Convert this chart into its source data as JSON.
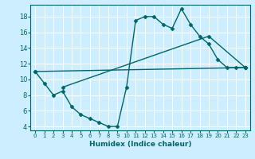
{
  "xlabel": "Humidex (Indice chaleur)",
  "bg_color": "#cceeff",
  "line_color": "#006666",
  "grid_color": "#ffffff",
  "xlim": [
    -0.5,
    23.5
  ],
  "ylim": [
    3.5,
    19.5
  ],
  "xticks": [
    0,
    1,
    2,
    3,
    4,
    5,
    6,
    7,
    8,
    9,
    10,
    11,
    12,
    13,
    14,
    15,
    16,
    17,
    18,
    19,
    20,
    21,
    22,
    23
  ],
  "yticks": [
    4,
    6,
    8,
    10,
    12,
    14,
    16,
    18
  ],
  "line1_x": [
    0,
    1,
    2,
    3,
    4,
    5,
    6,
    7,
    8,
    9,
    10,
    11,
    12,
    13,
    14,
    15,
    16,
    17,
    18,
    19,
    20,
    21,
    22,
    23
  ],
  "line1_y": [
    11,
    9.5,
    8,
    8.5,
    6.5,
    5.5,
    5,
    4.5,
    4,
    4,
    9,
    17.5,
    18,
    18,
    17,
    16.5,
    19,
    17,
    15.5,
    14.5,
    12.5,
    11.5,
    11.5,
    11.5
  ],
  "line2_x": [
    0,
    23
  ],
  "line2_y": [
    11,
    11.5
  ],
  "line3_x": [
    3,
    19,
    23
  ],
  "line3_y": [
    9,
    15.5,
    11.5
  ],
  "marker": "D",
  "markersize": 2.5,
  "linewidth": 1.0
}
